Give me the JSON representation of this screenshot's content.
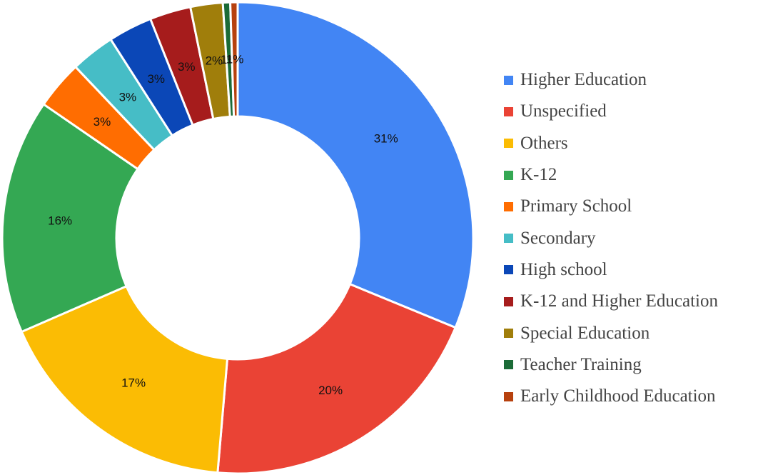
{
  "chart_data": {
    "type": "pie",
    "donut": true,
    "title": "",
    "legend_position": "right",
    "series": [
      {
        "label": "Higher Education",
        "value": 31,
        "display": "31%",
        "color": "#4285F4"
      },
      {
        "label": "Unspecified",
        "value": 20,
        "display": "20%",
        "color": "#EA4335"
      },
      {
        "label": "Others",
        "value": 17,
        "display": "17%",
        "color": "#FBBC04"
      },
      {
        "label": "K-12",
        "value": 16,
        "display": "16%",
        "color": "#34A853"
      },
      {
        "label": "Primary School",
        "value": 3.3,
        "display": "3%",
        "color": "#FF6D01"
      },
      {
        "label": "Secondary",
        "value": 3.0,
        "display": "3%",
        "color": "#46BDC6"
      },
      {
        "label": "High school",
        "value": 3.0,
        "display": "3%",
        "color": "#0B47B7"
      },
      {
        "label": "K-12 and Higher Education",
        "value": 2.8,
        "display": "3%",
        "color": "#A61C1C"
      },
      {
        "label": "Special Education",
        "value": 2.2,
        "display": "2%",
        "color": "#A07E0B"
      },
      {
        "label": "Teacher Training",
        "value": 0.5,
        "display": "1%",
        "color": "#1B6B37"
      },
      {
        "label": "Early Childhood Education",
        "value": 0.5,
        "display": "1%",
        "color": "#B7410E"
      }
    ]
  }
}
